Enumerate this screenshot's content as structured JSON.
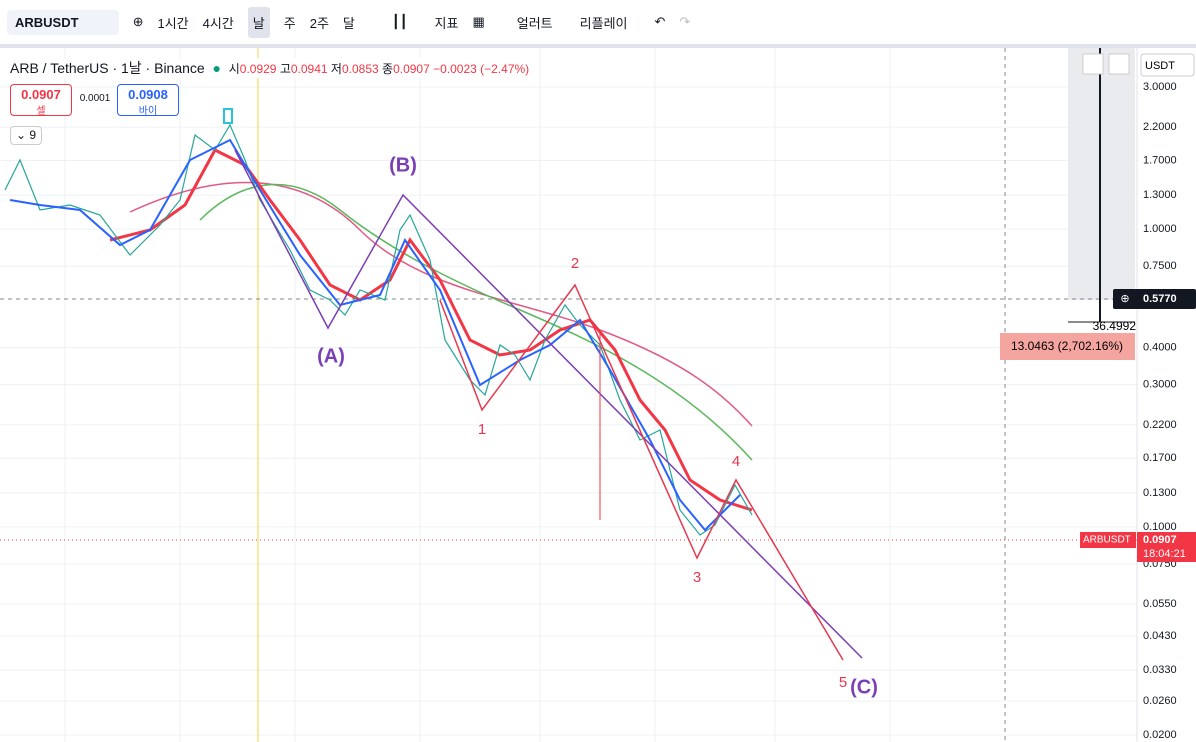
{
  "toolbar": {
    "symbol": "ARBUSDT",
    "intervals": [
      "1시간",
      "4시간",
      "날",
      "주",
      "2주",
      "달"
    ],
    "indicators": "지표",
    "alert": "얼러트",
    "replay": "리플레이"
  },
  "legend": {
    "title": "ARB / TetherUS · 1날 · Binance",
    "open_label": "시",
    "open": "0.0929",
    "high_label": "고",
    "high": "0.0941",
    "low_label": "저",
    "low": "0.0853",
    "close_label": "종",
    "close": "0.0907",
    "change": "−0.0023 (−2.47%)"
  },
  "trade": {
    "sell_price": "0.0907",
    "sell_label": "셀",
    "spread": "0.0001",
    "buy_price": "0.0908",
    "buy_label": "바이"
  },
  "indicator_count": "9",
  "price_axis": {
    "currency": "USDT",
    "ticks": [
      "3.0000",
      "2.2000",
      "1.7000",
      "1.3000",
      "1.0000",
      "0.7500",
      "0.4000",
      "0.3000",
      "0.2200",
      "0.1700",
      "0.1300",
      "0.1000",
      "0.0750",
      "0.0550",
      "0.0430",
      "0.0330",
      "0.0260",
      "0.0200"
    ],
    "crosshair_price": "0.5770",
    "last_symbol": "ARBUSDT",
    "last_price": "0.0907",
    "countdown": "18:04:21"
  },
  "measure": {
    "top": "36.4992",
    "label": "13.0463 (2,702.16%)"
  },
  "waves": {
    "abc": [
      "(A)",
      "(B)",
      "(C)"
    ],
    "impulse": [
      "1",
      "2",
      "3",
      "4",
      "5"
    ]
  }
}
